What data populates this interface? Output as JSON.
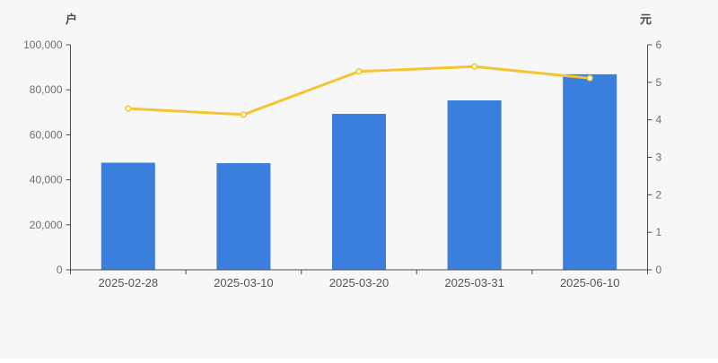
{
  "page": {
    "background": "#f7f7f7"
  },
  "chart_data": {
    "type": "bar",
    "subtype": "bar+line dual-axis",
    "categories": [
      "2025-02-28",
      "2025-03-10",
      "2025-03-20",
      "2025-03-31",
      "2025-06-10"
    ],
    "series": [
      {
        "id": "bars",
        "type": "bar",
        "axis": "left",
        "values": [
          47600,
          47400,
          69300,
          75300,
          86900
        ],
        "color": "#3a7ede"
      },
      {
        "id": "line",
        "type": "line",
        "axis": "right",
        "values": [
          4.3,
          4.14,
          5.29,
          5.42,
          5.11
        ],
        "color": "#f6c430",
        "marker": "hollow-circle",
        "marker_fill": "#ffffff"
      }
    ],
    "left_axis": {
      "name": "户",
      "min": 0,
      "max": 100000,
      "tick_interval": 20000,
      "tick_labels": [
        "0",
        "20,000",
        "40,000",
        "60,000",
        "80,000",
        "100,000"
      ]
    },
    "right_axis": {
      "name": "元",
      "min": 0,
      "max": 6,
      "tick_interval": 1,
      "tick_labels": [
        "0",
        "1",
        "2",
        "3",
        "4",
        "5",
        "6"
      ]
    },
    "grid": false,
    "legend": false,
    "title": ""
  },
  "style": {
    "axis_line_color": "#4d4d4d",
    "y_tick_label_color": "#6e6e6e",
    "x_tick_label_color": "#555555",
    "axis_name_color": "#4a4a4a",
    "bar_color": "#3a7ede",
    "line_color": "#f6c430",
    "background": "#f7f7f7"
  }
}
